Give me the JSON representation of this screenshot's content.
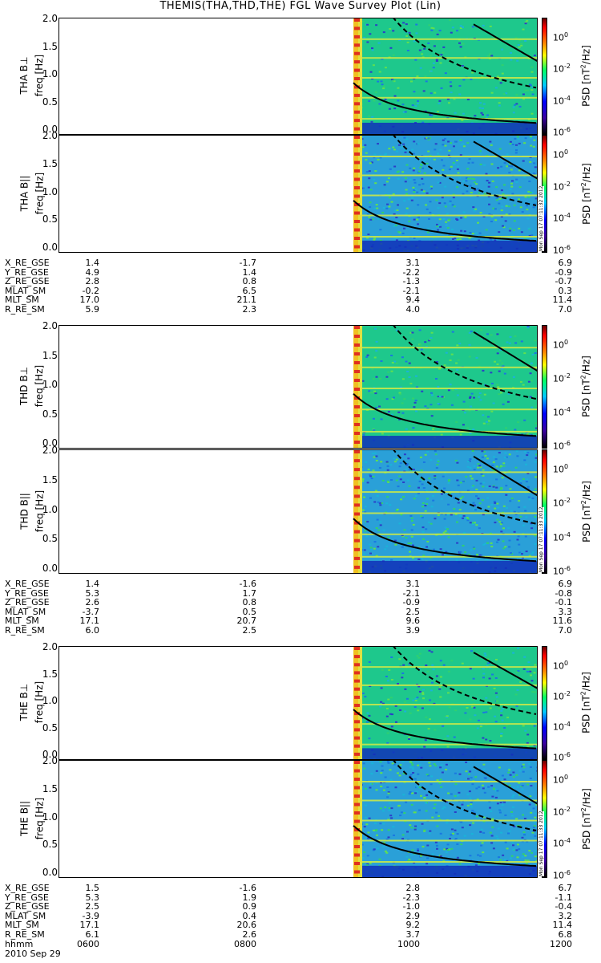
{
  "title": "THEMIS(THA,THD,THE) FGL Wave Survey Plot (Lin)",
  "colorbar": {
    "ticks": [
      {
        "base": "10",
        "exp": "0"
      },
      {
        "base": "10",
        "exp": "-2"
      },
      {
        "base": "10",
        "exp": "-4"
      },
      {
        "base": "10",
        "exp": "-6"
      }
    ],
    "label_main": "PSD [nT",
    "label_sup": "2",
    "label_end": "/Hz]"
  },
  "freq_ticks": [
    "2.0",
    "1.5",
    "1.0",
    "0.5",
    "0.0"
  ],
  "chart_data": [
    {
      "type": "heatmap",
      "title": "",
      "ylabel": "THA B⊥",
      "yunit": "freq [Hz]",
      "ylim": [
        0,
        2.0
      ],
      "xlim": [
        "0600",
        "1200"
      ],
      "data_start": "0945",
      "stamp": "Mon Sep 17 07:11:32 2012"
    },
    {
      "type": "heatmap",
      "title": "",
      "ylabel": "THA B||",
      "yunit": "freq [Hz]",
      "ylim": [
        0,
        2.0
      ],
      "xlim": [
        "0600",
        "1200"
      ],
      "data_start": "0945",
      "stamp": "Mon Sep 17 07:11:32 2012"
    },
    {
      "type": "heatmap",
      "title": "",
      "ylabel": "THD B⊥",
      "yunit": "freq [Hz]",
      "ylim": [
        0,
        2.0
      ],
      "xlim": [
        "0600",
        "1200"
      ],
      "data_start": "0945",
      "stamp": "Mon Sep 17 07:11:33 2012"
    },
    {
      "type": "heatmap",
      "title": "",
      "ylabel": "THD B||",
      "yunit": "freq [Hz]",
      "ylim": [
        0,
        2.0
      ],
      "xlim": [
        "0600",
        "1200"
      ],
      "data_start": "0945",
      "stamp": "Mon Sep 17 07:11:33 2012"
    },
    {
      "type": "heatmap",
      "title": "",
      "ylabel": "THE B⊥",
      "yunit": "freq [Hz]",
      "ylim": [
        0,
        2.0
      ],
      "xlim": [
        "0600",
        "1200"
      ],
      "data_start": "0945",
      "stamp": "Mon Sep 17 07:11:33 2012"
    },
    {
      "type": "heatmap",
      "title": "",
      "ylabel": "THE B||",
      "yunit": "freq [Hz]",
      "ylim": [
        0,
        2.0
      ],
      "xlim": [
        "0600",
        "1200"
      ],
      "data_start": "0945",
      "stamp": "Mon Sep 17 07:11:33 2012"
    }
  ],
  "ephemeris": [
    {
      "rows": [
        {
          "label": "X_RE_GSE",
          "values": [
            "1.4",
            "-1.7",
            "3.1",
            "6.9"
          ]
        },
        {
          "label": "Y_RE_GSE",
          "values": [
            "4.9",
            "1.4",
            "-2.2",
            "-0.9"
          ]
        },
        {
          "label": "Z_RE_GSE",
          "values": [
            "2.8",
            "0.8",
            "-1.3",
            "-0.7"
          ]
        },
        {
          "label": "MLAT_SM",
          "values": [
            "-0.2",
            "6.5",
            "-2.1",
            "0.3"
          ]
        },
        {
          "label": "MLT_SM",
          "values": [
            "17.0",
            "21.1",
            "9.4",
            "11.4"
          ]
        },
        {
          "label": "R_RE_SM",
          "values": [
            "5.9",
            "2.3",
            "4.0",
            "7.0"
          ]
        }
      ]
    },
    {
      "rows": [
        {
          "label": "X_RE_GSE",
          "values": [
            "1.4",
            "-1.6",
            "3.1",
            "6.9"
          ]
        },
        {
          "label": "Y_RE_GSE",
          "values": [
            "5.3",
            "1.7",
            "-2.1",
            "-0.8"
          ]
        },
        {
          "label": "Z_RE_GSE",
          "values": [
            "2.6",
            "0.8",
            "-0.9",
            "-0.1"
          ]
        },
        {
          "label": "MLAT_SM",
          "values": [
            "-3.7",
            "0.5",
            "2.5",
            "3.3"
          ]
        },
        {
          "label": "MLT_SM",
          "values": [
            "17.1",
            "20.7",
            "9.6",
            "11.6"
          ]
        },
        {
          "label": "R_RE_SM",
          "values": [
            "6.0",
            "2.5",
            "3.9",
            "7.0"
          ]
        }
      ]
    },
    {
      "rows": [
        {
          "label": "X_RE_GSE",
          "values": [
            "1.5",
            "-1.6",
            "2.8",
            "6.7"
          ]
        },
        {
          "label": "Y_RE_GSE",
          "values": [
            "5.3",
            "1.9",
            "-2.3",
            "-1.1"
          ]
        },
        {
          "label": "Z_RE_GSE",
          "values": [
            "2.5",
            "0.9",
            "-1.0",
            "-0.4"
          ]
        },
        {
          "label": "MLAT_SM",
          "values": [
            "-3.9",
            "0.4",
            "2.9",
            "3.2"
          ]
        },
        {
          "label": "MLT_SM",
          "values": [
            "17.1",
            "20.6",
            "9.2",
            "11.4"
          ]
        },
        {
          "label": "R_RE_SM",
          "values": [
            "6.1",
            "2.6",
            "3.7",
            "6.8"
          ]
        },
        {
          "label": "hhmm",
          "values": [
            "0600",
            "0800",
            "1000",
            "1200"
          ]
        }
      ]
    }
  ],
  "date_label": "2010 Sep 29"
}
